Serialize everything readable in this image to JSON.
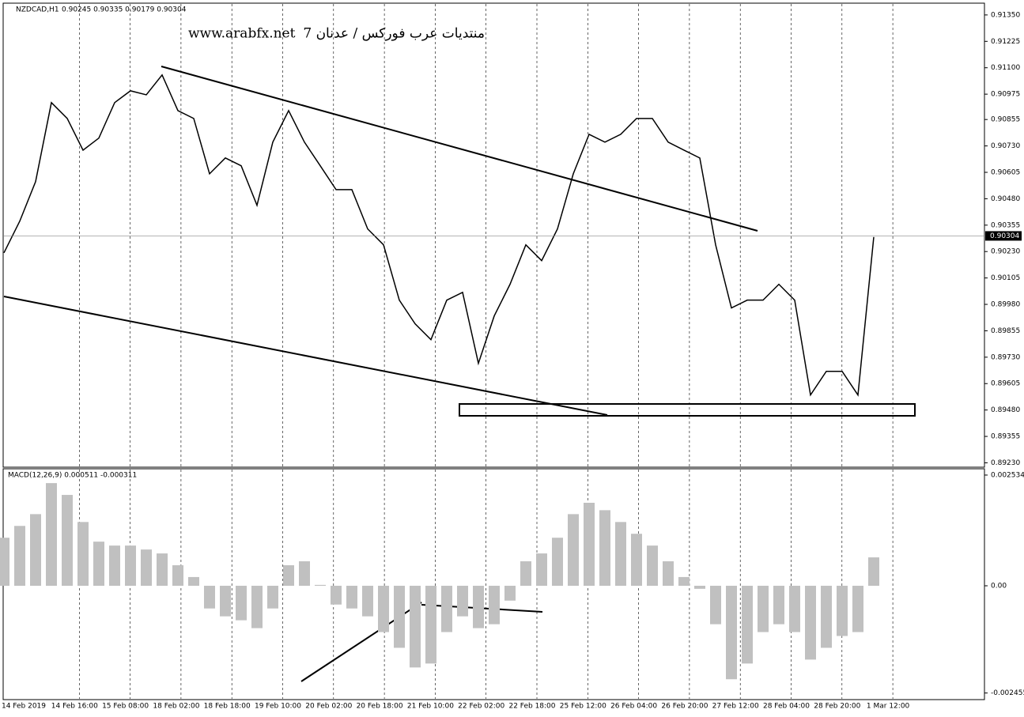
{
  "header": {
    "symbol": "NZDCAD,H1",
    "ohlc": "0.90245 0.90335 0.90179 0.90304"
  },
  "watermark": {
    "site": "www.arabfx.net",
    "arabic": "منتديات عرب فوركس / عدنان 7"
  },
  "time_axis": {
    "labels": [
      "14 Feb 2019",
      "14 Feb 16:00",
      "15 Feb 08:00",
      "18 Feb 02:00",
      "18 Feb 18:00",
      "19 Feb 10:00",
      "20 Feb 02:00",
      "20 Feb 18:00",
      "21 Feb 10:00",
      "22 Feb 02:00",
      "22 Feb 18:00",
      "25 Feb 12:00",
      "26 Feb 04:00",
      "26 Feb 20:00",
      "27 Feb 12:00",
      "28 Feb 04:00",
      "28 Feb 20:00",
      "1 Mar 12:00"
    ]
  },
  "chart_data": [
    {
      "type": "line",
      "color": "#000000",
      "last_price": 0.90304,
      "values": [
        0.90224,
        0.90374,
        0.90561,
        0.90935,
        0.9086,
        0.9071,
        0.90767,
        0.90935,
        0.90991,
        0.90972,
        0.91066,
        0.90897,
        0.9086,
        0.90598,
        0.90673,
        0.90636,
        0.90449,
        0.90748,
        0.90897,
        0.90748,
        0.90636,
        0.90523,
        0.90523,
        0.90337,
        0.90262,
        0.9,
        0.89888,
        0.89813,
        0.9,
        0.90037,
        0.89701,
        0.89925,
        0.90075,
        0.90262,
        0.90187,
        0.90337,
        0.90598,
        0.90785,
        0.90748,
        0.90785,
        0.9086,
        0.9086,
        0.90748,
        0.9071,
        0.90673,
        0.90262,
        0.89963,
        0.9,
        0.9,
        0.90075,
        0.9,
        0.89551,
        0.89663,
        0.89663,
        0.89551,
        0.90299
      ],
      "ylim": [
        0.89213,
        0.91402
      ],
      "yticks": [
        {
          "value": 0.9135,
          "label": "0.91350"
        },
        {
          "value": 0.91225,
          "label": "0.91225"
        },
        {
          "value": 0.911,
          "label": "0.91100"
        },
        {
          "value": 0.90975,
          "label": "0.90975"
        },
        {
          "value": 0.90855,
          "label": "0.90855"
        },
        {
          "value": 0.9073,
          "label": "0.90730"
        },
        {
          "value": 0.90605,
          "label": "0.90605"
        },
        {
          "value": 0.9048,
          "label": "0.90480"
        },
        {
          "value": 0.90355,
          "label": "0.90355"
        },
        {
          "value": 0.9023,
          "label": "0.90230"
        },
        {
          "value": 0.90105,
          "label": "0.90105"
        },
        {
          "value": 0.8998,
          "label": "0.89980"
        },
        {
          "value": 0.89855,
          "label": "0.89855"
        },
        {
          "value": 0.8973,
          "label": "0.89730"
        },
        {
          "value": 0.89605,
          "label": "0.89605"
        },
        {
          "value": 0.8948,
          "label": "0.89480"
        },
        {
          "value": 0.89355,
          "label": "0.89355"
        },
        {
          "value": 0.8923,
          "label": "0.89230"
        }
      ]
    },
    {
      "type": "bar",
      "title": "MACD(12,26,9) 0.000511 -0.000311",
      "color": "#c0c0c0",
      "values": [
        0.0011,
        0.00137,
        0.00164,
        0.00235,
        0.00208,
        0.00146,
        0.00101,
        0.00092,
        0.00092,
        0.00083,
        0.00074,
        0.00047,
        0.0002,
        -0.00052,
        -0.0007,
        -0.00079,
        -0.00097,
        -0.00052,
        0.00047,
        0.00056,
        2e-05,
        -0.00043,
        -0.00052,
        -0.0007,
        -0.00106,
        -0.00142,
        -0.00187,
        -0.00178,
        -0.00106,
        -0.0007,
        -0.00097,
        -0.00088,
        -0.00034,
        0.00056,
        0.00074,
        0.0011,
        0.00164,
        0.0019,
        0.00173,
        0.00146,
        0.00119,
        0.00092,
        0.00056,
        0.0002,
        -7e-05,
        -0.00088,
        -0.00214,
        -0.00178,
        -0.00106,
        -0.00088,
        -0.00106,
        -0.00169,
        -0.00142,
        -0.00115,
        -0.00106,
        0.00065
      ],
      "ylim": [
        -0.002588,
        0.00266
      ],
      "yticks": [
        0.002534,
        {
          "value": 0,
          "label": "0.00"
        },
        -0.002455
      ]
    }
  ]
}
